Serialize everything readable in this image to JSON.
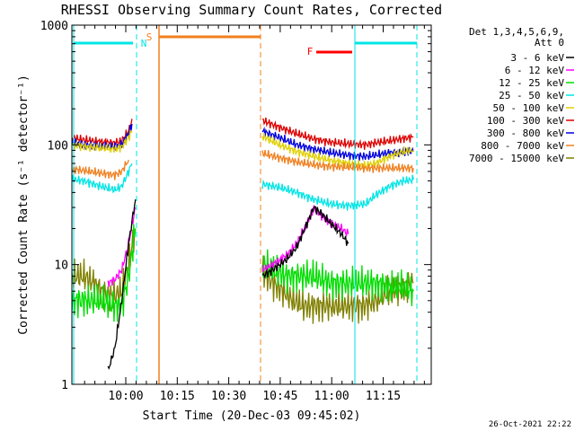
{
  "chart_data": {
    "type": "line",
    "title": "RHESSI Observing Summary Count Rates, Corrected",
    "xlabel": "Start Time (20-Dec-03 09:45:02)",
    "ylabel": "Corrected Count Rate (s⁻¹ detector⁻¹)",
    "y_scale": "log",
    "ylim": [
      1,
      1000
    ],
    "xlim_minutes": [
      -1,
      74
    ],
    "x_ticks": [
      {
        "minutes": 15,
        "label": "10:00"
      },
      {
        "minutes": 30,
        "label": "10:15"
      },
      {
        "minutes": 45,
        "label": "10:30"
      },
      {
        "minutes": 60,
        "label": "10:45"
      },
      {
        "minutes": 75,
        "label": "11:00"
      },
      {
        "minutes": 90,
        "label": "11:15"
      }
    ],
    "y_ticks": [
      {
        "value": 1,
        "label": "1"
      },
      {
        "value": 10,
        "label": "10"
      },
      {
        "value": 100,
        "label": "100"
      },
      {
        "value": 1000,
        "label": "1000"
      }
    ],
    "legend": {
      "header": [
        "Det 1,3,4,5,6,9,",
        "Att 0"
      ],
      "position": "right",
      "entries": [
        {
          "label": "3 - 6 keV",
          "color": "#000000"
        },
        {
          "label": "6 - 12 keV",
          "color": "#ff00ff"
        },
        {
          "label": "12 - 25 keV",
          "color": "#00dd00"
        },
        {
          "label": "25 - 50 keV",
          "color": "#00e5e5"
        },
        {
          "label": "50 - 100 keV",
          "color": "#e0d000"
        },
        {
          "label": "100 - 300 keV",
          "color": "#dd0000"
        },
        {
          "label": "300 - 800 keV",
          "color": "#0000dd"
        },
        {
          "label": "800 - 7000 keV",
          "color": "#f08020"
        },
        {
          "label": "7000 - 15000 keV",
          "color": "#808000"
        }
      ]
    },
    "flags": [
      {
        "label": "S",
        "color": "#f08020",
        "start_min": 33,
        "end_min": 68
      },
      {
        "label": "N",
        "color": "#00e5e5",
        "start_min": -1,
        "end_min": 13
      },
      {
        "label": "N",
        "color": "#00e5e5",
        "start_min": 113,
        "end_min": 128
      },
      {
        "label": "F",
        "color": "#ff0000",
        "start_min": 92,
        "end_min": 104
      }
    ],
    "series": [
      {
        "name": "100 - 300 keV",
        "color": "#dd0000",
        "segments": [
          [
            [
              -1,
              115
            ],
            [
              3,
              110
            ],
            [
              8,
              106
            ],
            [
              12,
              104
            ],
            [
              14,
              108
            ],
            [
              16,
              130
            ],
            [
              17,
              165
            ]
          ],
          [
            [
              55,
              160
            ],
            [
              60,
              140
            ],
            [
              65,
              124
            ],
            [
              70,
              112
            ],
            [
              75,
              105
            ],
            [
              80,
              102
            ],
            [
              85,
              100
            ],
            [
              88,
              104
            ],
            [
              92,
              108
            ],
            [
              96,
              113
            ],
            [
              99,
              116
            ]
          ]
        ]
      },
      {
        "name": "300 - 800 keV",
        "color": "#0000dd",
        "segments": [
          [
            [
              -1,
              105
            ],
            [
              3,
              100
            ],
            [
              8,
              98
            ],
            [
              12,
              96
            ],
            [
              14,
              100
            ],
            [
              16,
              125
            ],
            [
              17,
              150
            ]
          ],
          [
            [
              55,
              130
            ],
            [
              60,
              115
            ],
            [
              65,
              100
            ],
            [
              70,
              92
            ],
            [
              75,
              86
            ],
            [
              80,
              82
            ],
            [
              85,
              80
            ],
            [
              88,
              82
            ],
            [
              92,
              86
            ],
            [
              99,
              88
            ]
          ]
        ]
      },
      {
        "name": "50 - 100 keV",
        "color": "#e0d000",
        "segments": [
          [
            [
              -1,
              100
            ],
            [
              3,
              97
            ],
            [
              8,
              94
            ],
            [
              12,
              92
            ],
            [
              14,
              96
            ],
            [
              16,
              115
            ],
            [
              17,
              130
            ]
          ],
          [
            [
              55,
              118
            ],
            [
              60,
              100
            ],
            [
              65,
              88
            ],
            [
              70,
              80
            ],
            [
              75,
              74
            ],
            [
              80,
              70
            ],
            [
              85,
              67
            ],
            [
              88,
              70
            ],
            [
              92,
              80
            ],
            [
              96,
              88
            ],
            [
              99,
              90
            ]
          ]
        ]
      },
      {
        "name": "800 - 7000 keV",
        "color": "#f08020",
        "segments": [
          [
            [
              -1,
              63
            ],
            [
              3,
              61
            ],
            [
              8,
              58
            ],
            [
              12,
              56
            ],
            [
              14,
              60
            ],
            [
              16,
              75
            ]
          ],
          [
            [
              55,
              85
            ],
            [
              60,
              78
            ],
            [
              65,
              72
            ],
            [
              70,
              68
            ],
            [
              75,
              66
            ],
            [
              80,
              65
            ],
            [
              85,
              64
            ],
            [
              88,
              64
            ],
            [
              92,
              64
            ],
            [
              99,
              64
            ]
          ]
        ]
      },
      {
        "name": "7000 - 15000 keV",
        "color": "#808000",
        "segments": [
          [
            [
              -1,
              8
            ],
            [
              3,
              8
            ],
            [
              6,
              7
            ],
            [
              8,
              6
            ],
            [
              10,
              5.5
            ],
            [
              12,
              5.5
            ],
            [
              14,
              6
            ],
            [
              16,
              10
            ],
            [
              18,
              20
            ]
          ],
          [
            [
              55,
              9
            ],
            [
              58,
              7
            ],
            [
              61,
              6
            ],
            [
              64,
              5
            ],
            [
              67,
              4.5
            ],
            [
              72,
              4.5
            ],
            [
              78,
              4.5
            ],
            [
              84,
              4.5
            ],
            [
              88,
              5
            ],
            [
              92,
              6
            ],
            [
              96,
              6.5
            ],
            [
              99,
              7
            ]
          ]
        ]
      },
      {
        "name": "25 - 50 keV",
        "color": "#00e5e5",
        "segments": [
          [
            [
              -1,
              52
            ],
            [
              3,
              50
            ],
            [
              8,
              45
            ],
            [
              12,
              42
            ],
            [
              14,
              45
            ],
            [
              16,
              60
            ],
            [
              17,
              70
            ]
          ],
          [
            [
              55,
              47
            ],
            [
              60,
              44
            ],
            [
              65,
              40
            ],
            [
              70,
              35
            ],
            [
              75,
              32
            ],
            [
              80,
              31
            ],
            [
              85,
              32
            ],
            [
              88,
              38
            ],
            [
              92,
              45
            ],
            [
              96,
              50
            ],
            [
              99,
              51
            ]
          ]
        ]
      },
      {
        "name": "12 - 25 keV",
        "color": "#00dd00",
        "segments": [
          [
            [
              -1,
              5
            ],
            [
              8,
              5
            ],
            [
              12,
              4.5
            ],
            [
              14,
              4.5
            ],
            [
              16,
              8
            ],
            [
              18,
              20
            ]
          ],
          [
            [
              55,
              10
            ],
            [
              58,
              9
            ],
            [
              62,
              8
            ],
            [
              66,
              8
            ],
            [
              70,
              8
            ],
            [
              75,
              7
            ],
            [
              80,
              7
            ],
            [
              84,
              7
            ],
            [
              88,
              7
            ],
            [
              92,
              6.5
            ],
            [
              96,
              6.5
            ],
            [
              99,
              6
            ]
          ]
        ]
      },
      {
        "name": "6 - 12 keV",
        "color": "#ff00ff",
        "segments": [
          [
            [
              10,
              7
            ],
            [
              12,
              7.5
            ],
            [
              14,
              9
            ],
            [
              16,
              15
            ],
            [
              18,
              30
            ]
          ],
          [
            [
              55,
              9
            ],
            [
              58,
              10
            ],
            [
              62,
              12
            ],
            [
              65,
              15
            ],
            [
              68,
              22
            ],
            [
              70,
              30
            ],
            [
              72,
              26
            ],
            [
              75,
              22
            ],
            [
              78,
              20
            ],
            [
              80,
              18
            ]
          ]
        ]
      },
      {
        "name": "3 - 6 keV",
        "color": "#000000",
        "segments": [
          [
            [
              10,
              1.3
            ],
            [
              12,
              2
            ],
            [
              14,
              5
            ],
            [
              16,
              15
            ],
            [
              18,
              35
            ]
          ],
          [
            [
              55,
              8
            ],
            [
              58,
              9
            ],
            [
              62,
              11
            ],
            [
              65,
              14
            ],
            [
              68,
              22
            ],
            [
              70,
              30
            ],
            [
              72,
              27
            ],
            [
              75,
              22
            ],
            [
              78,
              18
            ],
            [
              80,
              15
            ]
          ]
        ]
      }
    ]
  },
  "footer": {
    "date_stamp": "26-Oct-2021 22:22"
  }
}
